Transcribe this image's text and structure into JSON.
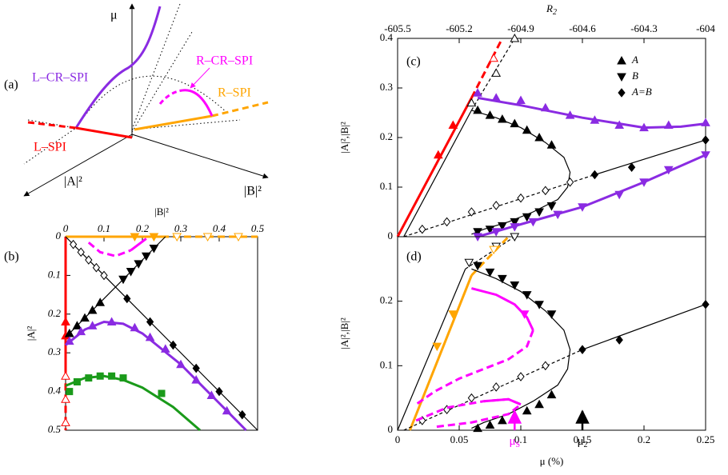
{
  "schematic": {
    "label": "(a)",
    "mu_axis": "μ",
    "a_axis": "|A|²",
    "b_axis": "|B|²",
    "l_cr_spi": "L–CR–SPI",
    "r_cr_spi": "R–CR–SPI",
    "r_spi": "R–SPI",
    "l_spi": "L–SPI"
  },
  "chart_data": [
    {
      "type": "line",
      "label": "(b)",
      "xlabel": "|B|²",
      "ylabel": "|A|²",
      "x_axis_position": "top",
      "y_inverted": true,
      "xlim": [
        0,
        0.5
      ],
      "ylim": [
        0,
        0.5
      ],
      "xticks": [
        0,
        0.1,
        0.2,
        0.3,
        0.4,
        0.5
      ],
      "yticks": [
        0,
        0.1,
        0.2,
        0.3,
        0.4,
        0.5
      ],
      "series": [
        {
          "color": "#ff0000",
          "line": "solid",
          "x": [
            0,
            0
          ],
          "values": [
            0,
            0.35
          ]
        },
        {
          "color": "#ff0000",
          "line": "dashed",
          "x": [
            0,
            0
          ],
          "values": [
            0.35,
            0.5
          ]
        },
        {
          "color": "#ff0000",
          "marker": "triangle-up",
          "marker_fill": "filled",
          "x": [
            0,
            0
          ],
          "values": [
            0.22,
            0.256
          ]
        },
        {
          "color": "#ff0000",
          "marker": "triangle-up",
          "marker_fill": "open",
          "x": [
            0,
            0,
            0
          ],
          "values": [
            0.36,
            0.42,
            0.48
          ]
        },
        {
          "color": "#ffa500",
          "line": "solid",
          "x": [
            0,
            0.25
          ],
          "values": [
            0,
            0
          ]
        },
        {
          "color": "#ffa500",
          "line": "dashed",
          "x": [
            0.25,
            0.5
          ],
          "values": [
            0,
            0
          ]
        },
        {
          "color": "#ffa500",
          "marker": "triangle-down",
          "marker_fill": "filled",
          "x": [
            0.18,
            0.23
          ],
          "values": [
            0,
            0
          ]
        },
        {
          "color": "#ffa500",
          "marker": "triangle-down",
          "marker_fill": "open",
          "x": [
            0.29,
            0.37,
            0.45
          ],
          "values": [
            0,
            0,
            0
          ]
        },
        {
          "color": "#000000",
          "line": "solid",
          "x": [
            0,
            0.26
          ],
          "values": [
            0.26,
            0
          ]
        },
        {
          "color": "#000000",
          "marker": "triangle-up",
          "marker_fill": "filled",
          "x": [
            0.01,
            0.03,
            0.05,
            0.07,
            0.09
          ],
          "values": [
            0.25,
            0.23,
            0.21,
            0.19,
            0.17
          ]
        },
        {
          "color": "#000000",
          "marker": "triangle-down",
          "marker_fill": "filled",
          "x": [
            0.15,
            0.17,
            0.19,
            0.21,
            0.23
          ],
          "values": [
            0.11,
            0.09,
            0.07,
            0.05,
            0.03
          ]
        },
        {
          "color": "#000000",
          "line": "solid",
          "x": [
            0,
            0.5
          ],
          "values": [
            0,
            0.5
          ]
        },
        {
          "color": "#000000",
          "marker": "diamond",
          "marker_fill": "open",
          "x": [
            0.02,
            0.04,
            0.06,
            0.08,
            0.1
          ],
          "values": [
            0.02,
            0.04,
            0.06,
            0.08,
            0.1
          ]
        },
        {
          "color": "#000000",
          "marker": "diamond",
          "marker_fill": "filled",
          "x": [
            0.16,
            0.22,
            0.28,
            0.34,
            0.4,
            0.46
          ],
          "values": [
            0.16,
            0.22,
            0.28,
            0.34,
            0.4,
            0.46
          ]
        },
        {
          "color": "#8a2be2",
          "line": "solid",
          "x": [
            0,
            0.05,
            0.1,
            0.15,
            0.2,
            0.3,
            0.4,
            0.47
          ],
          "values": [
            0.28,
            0.24,
            0.22,
            0.225,
            0.25,
            0.33,
            0.43,
            0.5
          ]
        },
        {
          "color": "#8a2be2",
          "marker": "triangle-up",
          "marker_fill": "filled",
          "x": [
            0.01,
            0.04,
            0.07,
            0.12,
            0.18,
            0.22,
            0.26,
            0.3,
            0.34,
            0.38,
            0.42
          ],
          "values": [
            0.27,
            0.245,
            0.23,
            0.22,
            0.235,
            0.26,
            0.29,
            0.33,
            0.37,
            0.41,
            0.45
          ]
        },
        {
          "color": "#1a9a1a",
          "line": "solid",
          "x": [
            0,
            0.05,
            0.1,
            0.15,
            0.2,
            0.28,
            0.35
          ],
          "values": [
            0.385,
            0.365,
            0.36,
            0.37,
            0.39,
            0.44,
            0.5
          ]
        },
        {
          "color": "#1a9a1a",
          "marker": "square",
          "marker_fill": "filled",
          "x": [
            0.01,
            0.03,
            0.06,
            0.09,
            0.12,
            0.15,
            0.25
          ],
          "values": [
            0.4,
            0.375,
            0.365,
            0.36,
            0.36,
            0.365,
            0.405
          ]
        },
        {
          "color": "#ff00ff",
          "line": "dashed",
          "x": [
            0.06,
            0.09,
            0.13,
            0.17
          ],
          "values": [
            0.015,
            0.04,
            0.05,
            0.035
          ]
        },
        {
          "color": "#ff00ff",
          "line": "solid",
          "x": [
            0.17,
            0.21
          ],
          "values": [
            0.035,
            0.005
          ]
        }
      ]
    },
    {
      "type": "line",
      "label": "(c)",
      "ylabel": "|A|²,|B|²",
      "x2label": "R",
      "x2label_sub": "2",
      "legend": "upper right",
      "xlim": [
        0,
        0.25
      ],
      "ylim": [
        0,
        0.4
      ],
      "yticks": [
        0,
        0.1,
        0.2,
        0.3,
        0.4
      ],
      "x2lim": [
        -605.5,
        -604
      ],
      "x2ticks": [
        -605.5,
        -605.2,
        -604.9,
        -604.6,
        -604.3,
        -604
      ],
      "series": [
        {
          "color": "#ff0000",
          "line": "solid",
          "x": [
            0,
            0.06
          ],
          "values": [
            0,
            0.28
          ]
        },
        {
          "color": "#ff0000",
          "line": "dashed",
          "x": [
            0.06,
            0.085
          ],
          "values": [
            0.28,
            0.4
          ]
        },
        {
          "color": "#ff0000",
          "marker": "triangle-up",
          "marker_fill": "filled",
          "x": [
            0.033,
            0.045
          ],
          "values": [
            0.165,
            0.225
          ]
        },
        {
          "color": "#ff0000",
          "marker": "triangle-up",
          "marker_fill": "open",
          "x": [
            0.078
          ],
          "values": [
            0.36
          ]
        },
        {
          "color": "#000000",
          "line": "solid",
          "x": [
            0.005,
            0.06
          ],
          "values": [
            0,
            0.255
          ]
        },
        {
          "color": "#000000",
          "line": "dashed",
          "x": [
            0.06,
            0.095
          ],
          "values": [
            0.255,
            0.4
          ]
        },
        {
          "color": "#000000",
          "marker": "triangle-up",
          "marker_fill": "open",
          "x": [
            0.06,
            0.08,
            0.095
          ],
          "values": [
            0.27,
            0.33,
            0.4
          ]
        },
        {
          "color": "#8a2be2",
          "line": "solid",
          "x": [
            0.065,
            0.1,
            0.15,
            0.2,
            0.23,
            0.25
          ],
          "values": [
            0.28,
            0.265,
            0.24,
            0.22,
            0.222,
            0.228
          ]
        },
        {
          "color": "#8a2be2",
          "marker": "triangle-up",
          "marker_fill": "filled",
          "x": [
            0.065,
            0.08,
            0.1,
            0.12,
            0.14,
            0.16,
            0.18,
            0.2,
            0.22,
            0.25
          ],
          "values": [
            0.29,
            0.28,
            0.275,
            0.26,
            0.245,
            0.235,
            0.225,
            0.22,
            0.225,
            0.23
          ]
        },
        {
          "color": "#000000",
          "line": "solid",
          "x": [
            0.06,
            0.08,
            0.1,
            0.12,
            0.135,
            0.14,
            0.138,
            0.13,
            0.11,
            0.09,
            0.07,
            0.06
          ],
          "values": [
            0.255,
            0.24,
            0.22,
            0.19,
            0.16,
            0.13,
            0.1,
            0.075,
            0.05,
            0.03,
            0.015,
            0.005
          ]
        },
        {
          "name": "A",
          "color": "#000000",
          "marker": "triangle-up",
          "marker_fill": "filled",
          "x": [
            0.065,
            0.075,
            0.085,
            0.095,
            0.105,
            0.115,
            0.125
          ],
          "values": [
            0.255,
            0.245,
            0.237,
            0.228,
            0.215,
            0.2,
            0.185
          ]
        },
        {
          "name": "B",
          "color": "#000000",
          "marker": "triangle-down",
          "marker_fill": "filled",
          "x": [
            0.065,
            0.075,
            0.085,
            0.095,
            0.105,
            0.115,
            0.125
          ],
          "values": [
            0.01,
            0.015,
            0.022,
            0.03,
            0.04,
            0.05,
            0.062
          ]
        },
        {
          "color": "#000000",
          "line": "dashed",
          "x": [
            0.005,
            0.16
          ],
          "values": [
            0,
            0.125
          ]
        },
        {
          "color": "#000000",
          "line": "solid",
          "x": [
            0.16,
            0.25
          ],
          "values": [
            0.125,
            0.195
          ]
        },
        {
          "color": "#000000",
          "marker": "diamond",
          "marker_fill": "open",
          "x": [
            0.02,
            0.04,
            0.06,
            0.08,
            0.1,
            0.12,
            0.14
          ],
          "values": [
            0.015,
            0.03,
            0.05,
            0.063,
            0.078,
            0.093,
            0.11
          ]
        },
        {
          "name": "A=B",
          "color": "#000000",
          "marker": "diamond",
          "marker_fill": "filled",
          "x": [
            0.16,
            0.19,
            0.25
          ],
          "values": [
            0.125,
            0.14,
            0.195
          ]
        },
        {
          "color": "#8a2be2",
          "line": "solid",
          "x": [
            0.065,
            0.1,
            0.15,
            0.2,
            0.25
          ],
          "values": [
            0,
            0.025,
            0.06,
            0.11,
            0.165
          ]
        },
        {
          "color": "#8a2be2",
          "marker": "triangle-down",
          "marker_fill": "filled",
          "x": [
            0.065,
            0.08,
            0.095,
            0.11,
            0.13,
            0.15,
            0.18,
            0.2,
            0.22,
            0.25
          ],
          "values": [
            0,
            0.01,
            0.02,
            0.03,
            0.045,
            0.06,
            0.085,
            0.11,
            0.135,
            0.165
          ]
        }
      ]
    },
    {
      "type": "line",
      "label": "(d)",
      "ylabel": "|A|²,|B|²",
      "xlabel": "μ (%)",
      "xlim": [
        0,
        0.25
      ],
      "ylim": [
        0,
        0.3
      ],
      "xticks": [
        0,
        0.05,
        0.1,
        0.15,
        0.2,
        0.25
      ],
      "yticks": [
        0,
        0.1,
        0.2
      ],
      "annotations": [
        {
          "x": 0.095,
          "label": "μ",
          "sub": "S",
          "color": "#ff00ff"
        },
        {
          "x": 0.15,
          "label": "μ",
          "sub": "2",
          "color": "#000000"
        }
      ],
      "series": [
        {
          "color": "#000000",
          "line": "solid",
          "x": [
            0,
            0.055
          ],
          "values": [
            0,
            0.25
          ]
        },
        {
          "color": "#000000",
          "line": "dashed",
          "x": [
            0.055,
            0.095
          ],
          "values": [
            0.25,
            0.3
          ]
        },
        {
          "color": "#000000",
          "marker": "triangle-down",
          "marker_fill": "open",
          "x": [
            0.058,
            0.08,
            0.095
          ],
          "values": [
            0.26,
            0.285,
            0.3
          ]
        },
        {
          "color": "#ffa500",
          "line": "solid",
          "x": [
            0.01,
            0.06
          ],
          "values": [
            0,
            0.24
          ]
        },
        {
          "color": "#ffa500",
          "line": "dashed",
          "x": [
            0.06,
            0.09
          ],
          "values": [
            0.24,
            0.3
          ]
        },
        {
          "color": "#ffa500",
          "marker": "triangle-down",
          "marker_fill": "filled",
          "x": [
            0.032,
            0.045
          ],
          "values": [
            0.13,
            0.18
          ]
        },
        {
          "color": "#ffa500",
          "marker": "triangle-down",
          "marker_fill": "open",
          "x": [
            0.078
          ],
          "values": [
            0.28
          ]
        },
        {
          "color": "#000000",
          "line": "solid",
          "x": [
            0.06,
            0.08,
            0.1,
            0.12,
            0.135,
            0.14,
            0.138,
            0.13,
            0.11,
            0.09,
            0.07,
            0.06
          ],
          "values": [
            0.25,
            0.235,
            0.215,
            0.185,
            0.155,
            0.125,
            0.095,
            0.07,
            0.045,
            0.025,
            0.012,
            0.003
          ]
        },
        {
          "color": "#000000",
          "marker": "triangle-down",
          "marker_fill": "filled",
          "x": [
            0.065,
            0.075,
            0.085,
            0.095,
            0.105,
            0.115,
            0.125
          ],
          "values": [
            0.255,
            0.245,
            0.235,
            0.225,
            0.21,
            0.195,
            0.18
          ]
        },
        {
          "color": "#000000",
          "marker": "triangle-up",
          "marker_fill": "filled",
          "x": [
            0.065,
            0.075,
            0.085,
            0.095,
            0.105,
            0.115,
            0.125
          ],
          "values": [
            0.003,
            0.008,
            0.015,
            0.022,
            0.03,
            0.04,
            0.055
          ]
        },
        {
          "color": "#000000",
          "line": "dashed",
          "x": [
            0.005,
            0.15
          ],
          "values": [
            0,
            0.125
          ]
        },
        {
          "color": "#000000",
          "line": "solid",
          "x": [
            0.15,
            0.25
          ],
          "values": [
            0.125,
            0.195
          ]
        },
        {
          "color": "#000000",
          "marker": "diamond",
          "marker_fill": "open",
          "x": [
            0.02,
            0.04,
            0.06,
            0.08,
            0.1,
            0.12
          ],
          "values": [
            0.015,
            0.032,
            0.05,
            0.067,
            0.083,
            0.1
          ]
        },
        {
          "color": "#000000",
          "marker": "diamond",
          "marker_fill": "filled",
          "x": [
            0.15,
            0.18,
            0.25
          ],
          "values": [
            0.125,
            0.14,
            0.195
          ]
        },
        {
          "color": "#ff00ff",
          "line": "solid",
          "x": [
            0.06,
            0.08,
            0.095,
            0.105,
            0.11
          ],
          "values": [
            0.22,
            0.21,
            0.195,
            0.175,
            0.155
          ]
        },
        {
          "color": "#ff00ff",
          "marker": "triangle-down",
          "marker_fill": "filled",
          "x": [
            0.103
          ],
          "values": [
            0.18
          ]
        },
        {
          "color": "#ff00ff",
          "line": "dashed",
          "x": [
            0.11,
            0.105,
            0.09,
            0.07,
            0.05,
            0.03,
            0.015
          ],
          "values": [
            0.155,
            0.13,
            0.11,
            0.095,
            0.08,
            0.06,
            0.04
          ]
        },
        {
          "color": "#ff00ff",
          "line": "dashed",
          "x": [
            0.015,
            0.04,
            0.07,
            0.09,
            0.1,
            0.09,
            0.06,
            0.03
          ],
          "values": [
            0.015,
            0.035,
            0.045,
            0.048,
            0.04,
            0.025,
            0.012,
            0.005
          ]
        },
        {
          "color": "#ff00ff",
          "line": "solid",
          "x": [
            0.07,
            0.09,
            0.1
          ],
          "values": [
            0.045,
            0.048,
            0.04
          ]
        }
      ]
    }
  ]
}
